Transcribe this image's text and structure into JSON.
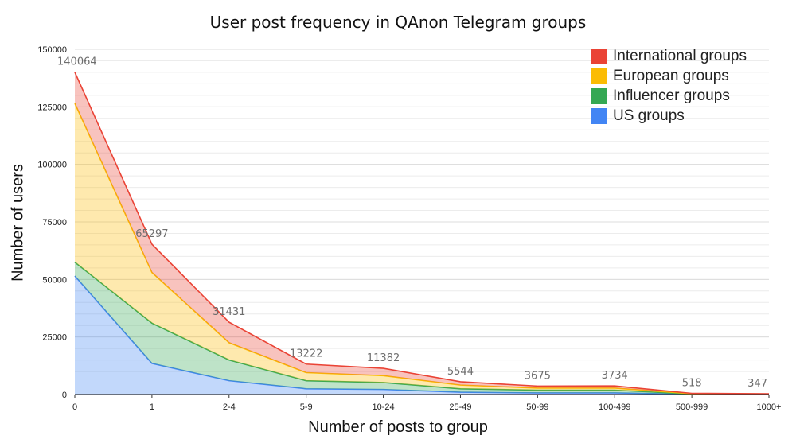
{
  "chart_data": {
    "type": "area",
    "stacked": true,
    "title": "User post frequency in QAnon Telegram groups",
    "xlabel": "Number of posts to group",
    "ylabel": "Number of users",
    "categories": [
      "0",
      "1",
      "2-4",
      "5-9",
      "10-24",
      "25-49",
      "50-99",
      "100-499",
      "500-999",
      "1000+"
    ],
    "ylim": [
      0,
      150000
    ],
    "yticks": [
      0,
      25000,
      50000,
      75000,
      100000,
      125000,
      150000
    ],
    "grid": true,
    "legend_position": "top-right",
    "series": [
      {
        "name": "US groups",
        "color": "#4285f4",
        "values": [
          51500,
          13500,
          6000,
          2500,
          2200,
          1000,
          700,
          700,
          100,
          60
        ]
      },
      {
        "name": "Influencer groups",
        "color": "#34a853",
        "values": [
          6000,
          17500,
          9000,
          3500,
          3000,
          1500,
          1200,
          1200,
          150,
          90
        ]
      },
      {
        "name": "European groups",
        "color": "#fbbc04",
        "values": [
          69000,
          22000,
          7500,
          3500,
          3000,
          1600,
          900,
          900,
          130,
          100
        ]
      },
      {
        "name": "International groups",
        "color": "#ea4335",
        "values": [
          13564,
          12297,
          8931,
          3722,
          3182,
          1444,
          875,
          934,
          138,
          97
        ]
      }
    ],
    "totals": [
      140064,
      65297,
      31431,
      13222,
      11382,
      5544,
      3675,
      3734,
      518,
      347
    ],
    "data_labels": [
      "140064",
      "65297",
      "31431",
      "13222",
      "11382",
      "5544",
      "3675",
      "3734",
      "518",
      "347"
    ]
  },
  "legend": [
    {
      "label": "International groups",
      "color": "#ea4335"
    },
    {
      "label": "European groups",
      "color": "#fbbc04"
    },
    {
      "label": "Influencer groups",
      "color": "#34a853"
    },
    {
      "label": "US groups",
      "color": "#4285f4"
    }
  ]
}
